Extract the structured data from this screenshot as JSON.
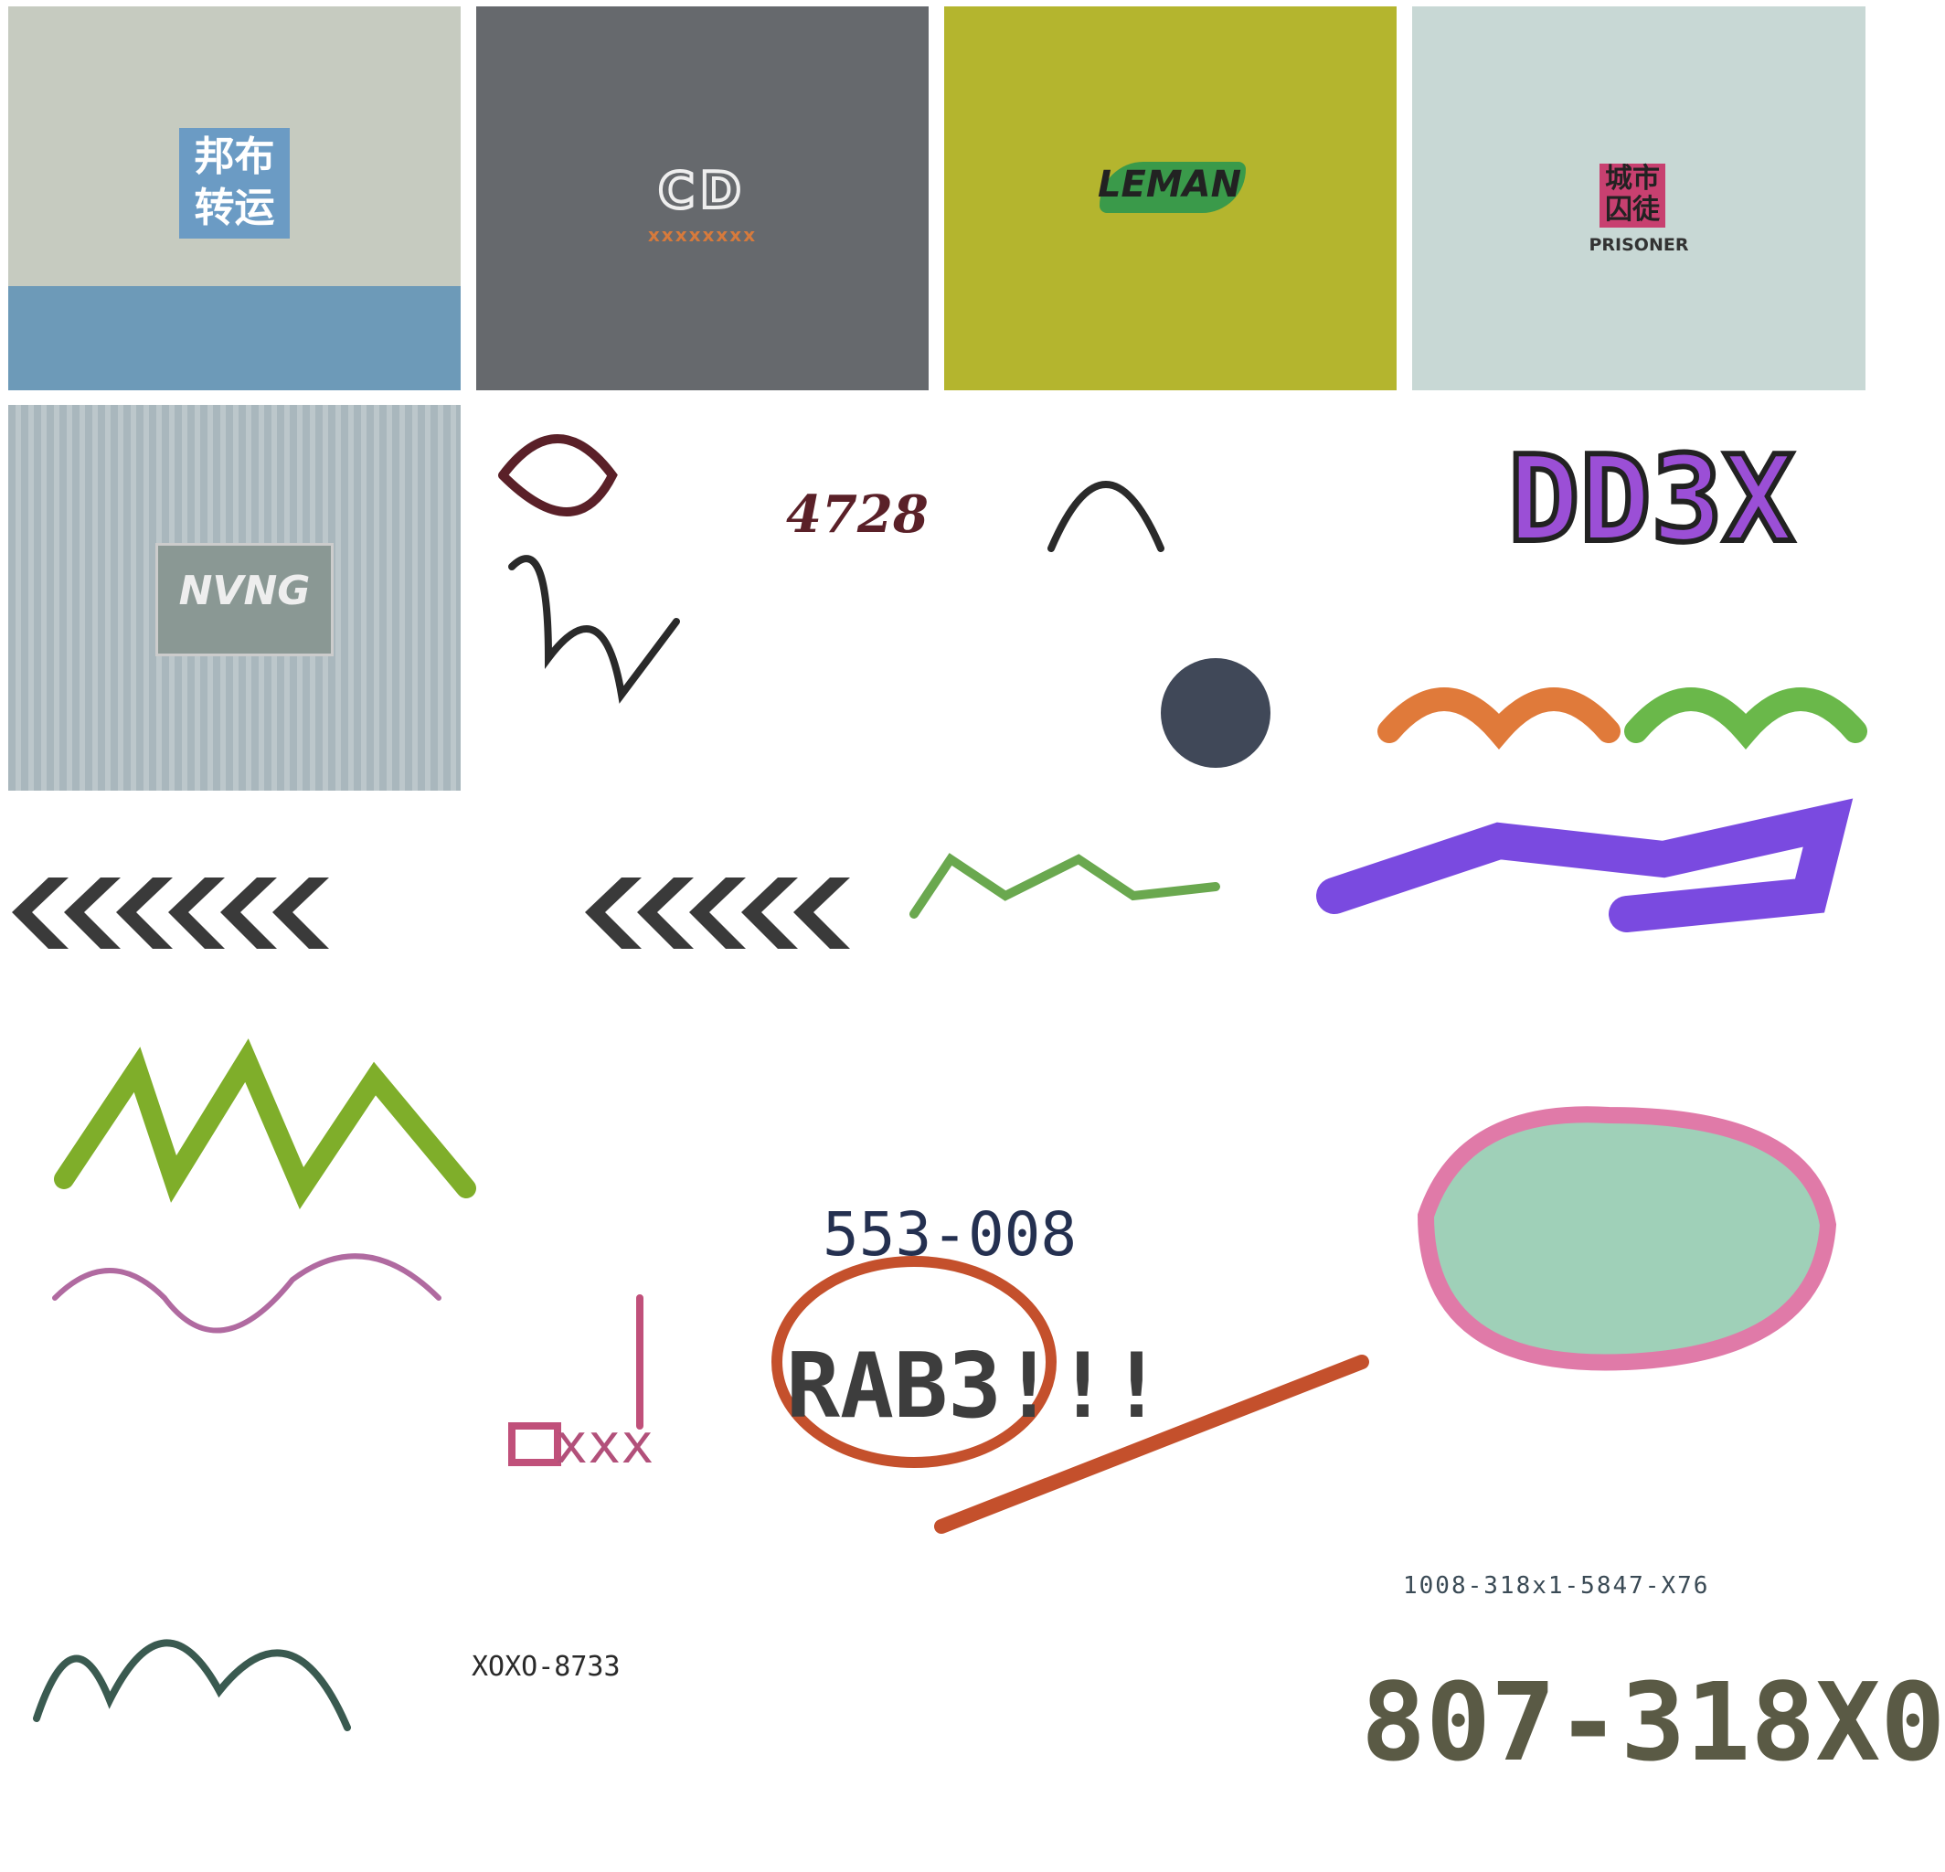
{
  "panels": [
    {
      "line1": "邦布",
      "line2": "转运"
    },
    {
      "logo": "CD",
      "caption": "xxxxxxxx"
    },
    {
      "logo": "LEMAN"
    },
    {
      "line1": "城市",
      "line2": "囚徒",
      "caption": "PRISONER"
    },
    {
      "logo": "NVNG"
    }
  ],
  "tags": [
    {
      "text": "DD3X",
      "color": "#9b4fd6"
    },
    {
      "text": "4728",
      "color": "#5a2028"
    },
    {
      "text": "553-008",
      "color": "#243050"
    },
    {
      "text": "RAB3!!!",
      "color": "#3d3d3d"
    },
    {
      "text": "xxx",
      "color": "#b2507a"
    },
    {
      "text": "XOXO-8733",
      "color": "#2a2a2a"
    },
    {
      "text": "1008-318x1-5847-X76",
      "color": "#3a4a55"
    },
    {
      "text": "807-318X0",
      "color": "#5a5a45"
    }
  ]
}
